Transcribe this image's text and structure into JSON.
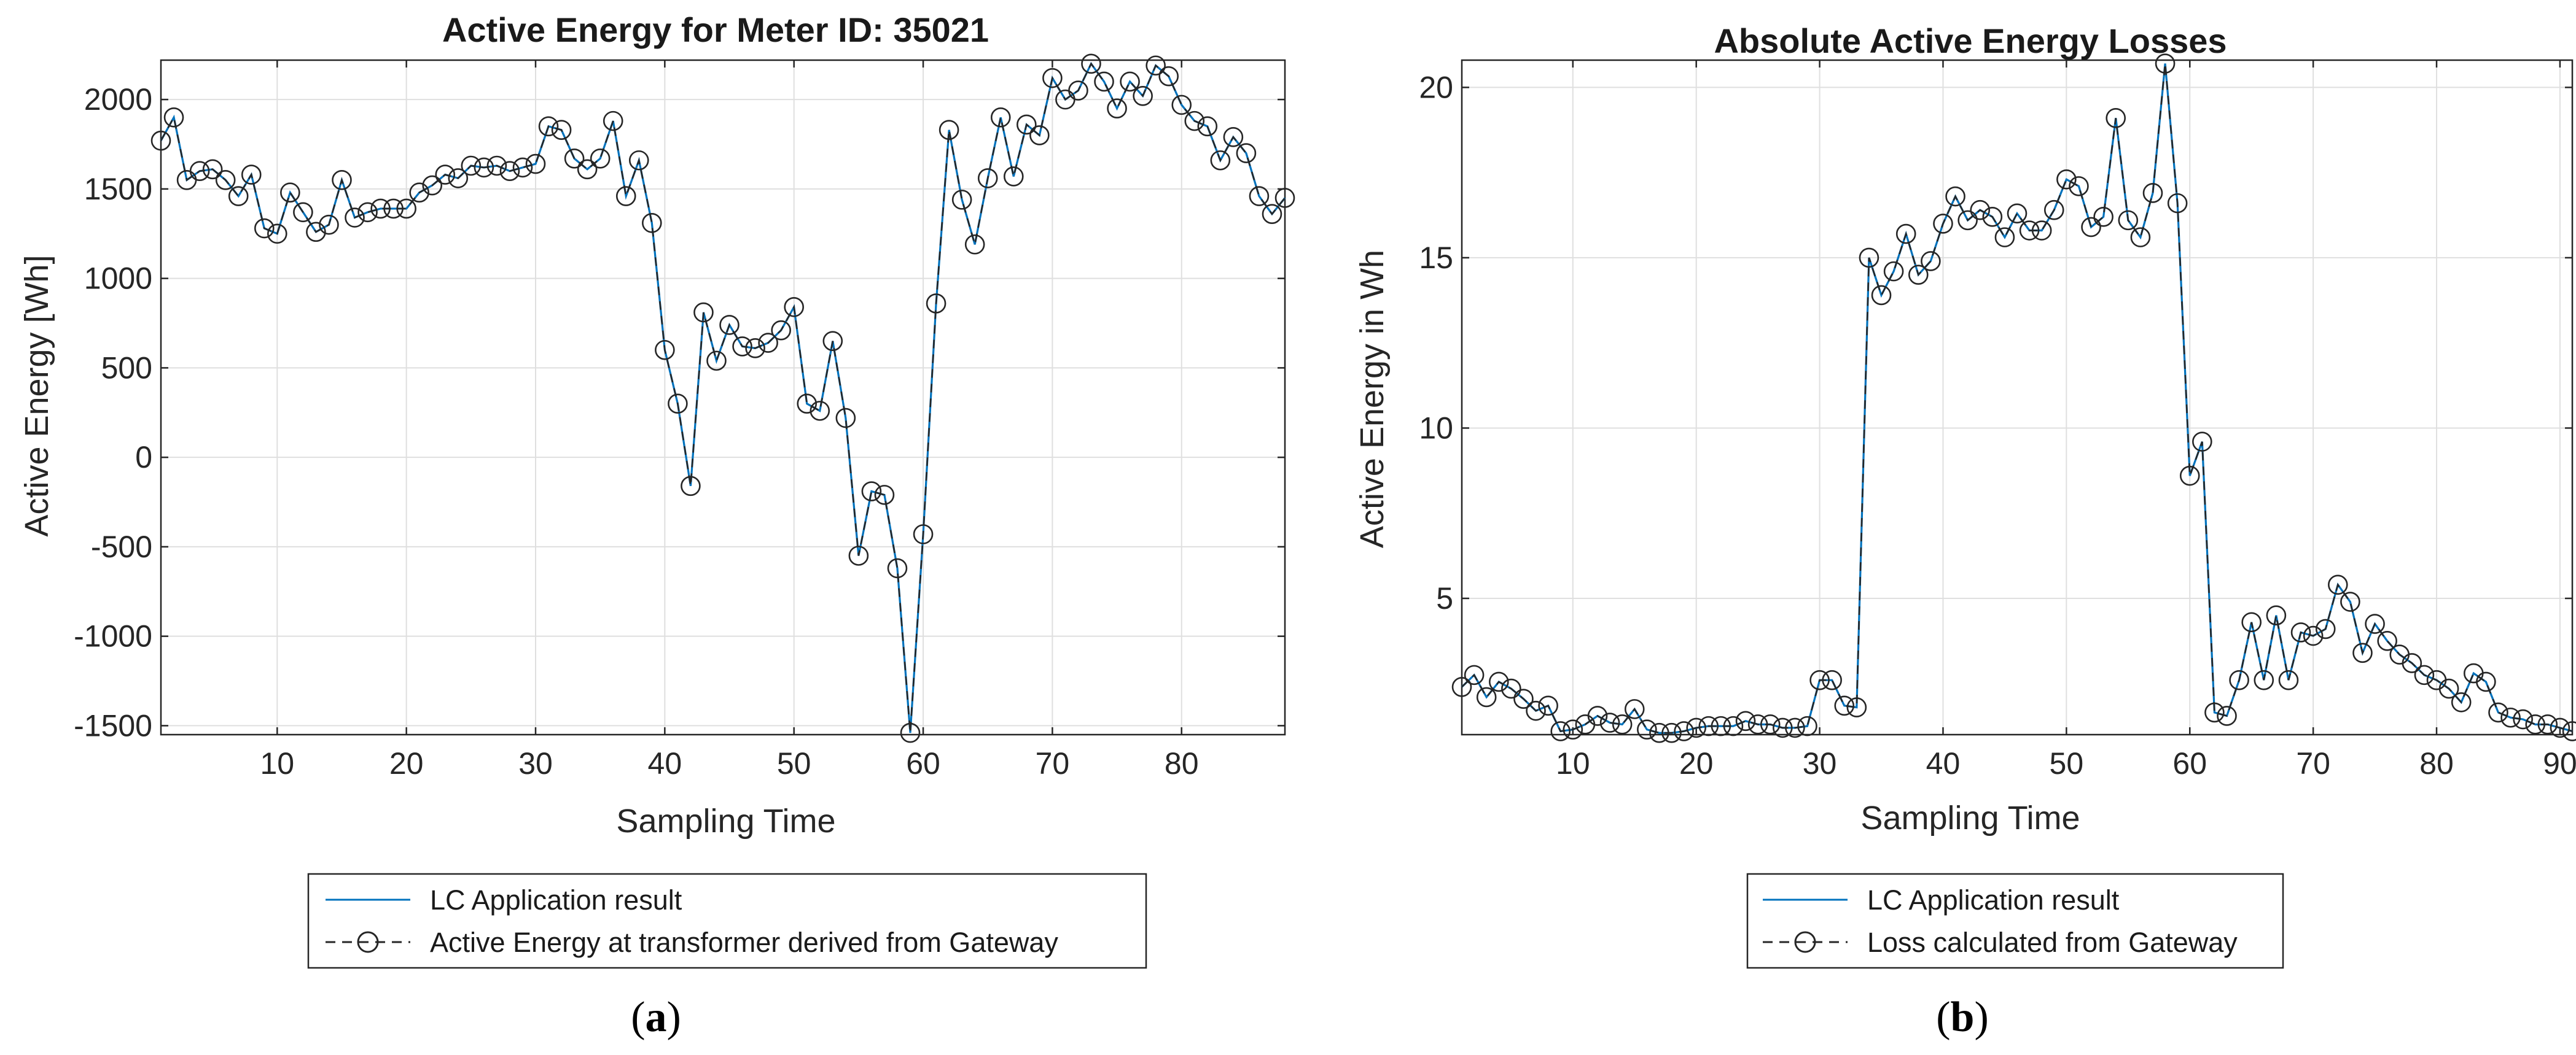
{
  "chart_data": [
    {
      "type": "line",
      "panel_label": "a",
      "title": "Active Energy for Meter ID: 35021",
      "xlabel": "Sampling Time",
      "ylabel": "Active Energy [Wh]",
      "xlim": [
        1,
        88
      ],
      "ylim": [
        -1550,
        2220
      ],
      "xticks": [
        10,
        20,
        30,
        40,
        50,
        60,
        70,
        80
      ],
      "yticks": [
        -1500,
        -1000,
        -500,
        0,
        500,
        1000,
        1500,
        2000
      ],
      "grid": true,
      "legend_position": "bottom-center",
      "x": [
        1,
        2,
        3,
        4,
        5,
        6,
        7,
        8,
        9,
        10,
        11,
        12,
        13,
        14,
        15,
        16,
        17,
        18,
        19,
        20,
        21,
        22,
        23,
        24,
        25,
        26,
        27,
        28,
        29,
        30,
        31,
        32,
        33,
        34,
        35,
        36,
        37,
        38,
        39,
        40,
        41,
        42,
        43,
        44,
        45,
        46,
        47,
        48,
        49,
        50,
        51,
        52,
        53,
        54,
        55,
        56,
        57,
        58,
        59,
        60,
        61,
        62,
        63,
        64,
        65,
        66,
        67,
        68,
        69,
        70,
        71,
        72,
        73,
        74,
        75,
        76,
        77,
        78,
        79,
        80,
        81,
        82,
        83,
        84,
        85,
        86,
        87,
        88
      ],
      "series": [
        {
          "name": "LC Application result",
          "style": "solid",
          "color": "#0072BD",
          "values": [
            1770,
            1900,
            1550,
            1600,
            1610,
            1550,
            1460,
            1580,
            1280,
            1250,
            1480,
            1370,
            1260,
            1300,
            1550,
            1340,
            1370,
            1390,
            1390,
            1390,
            1480,
            1520,
            1580,
            1560,
            1630,
            1620,
            1630,
            1600,
            1620,
            1640,
            1850,
            1830,
            1670,
            1610,
            1670,
            1880,
            1460,
            1660,
            1310,
            600,
            300,
            -160,
            810,
            540,
            740,
            620,
            610,
            640,
            710,
            840,
            300,
            260,
            650,
            220,
            -550,
            -190,
            -210,
            -620,
            -1540,
            -430,
            860,
            1830,
            1440,
            1190,
            1560,
            1900,
            1570,
            1860,
            1800,
            2120,
            2000,
            2050,
            2200,
            2100,
            1950,
            2100,
            2020,
            2190,
            2130,
            1970,
            1880,
            1850,
            1660,
            1790,
            1700,
            1460,
            1360,
            1450
          ]
        },
        {
          "name": "Active Energy at transformer derived from Gateway",
          "style": "dashed-circle",
          "color": "#262626",
          "values": [
            1770,
            1900,
            1550,
            1600,
            1610,
            1550,
            1460,
            1580,
            1280,
            1250,
            1480,
            1370,
            1260,
            1300,
            1550,
            1340,
            1370,
            1390,
            1390,
            1390,
            1480,
            1520,
            1580,
            1560,
            1630,
            1620,
            1630,
            1600,
            1620,
            1640,
            1850,
            1830,
            1670,
            1610,
            1670,
            1880,
            1460,
            1660,
            1310,
            600,
            300,
            -160,
            810,
            540,
            740,
            620,
            610,
            640,
            710,
            840,
            300,
            260,
            650,
            220,
            -550,
            -190,
            -210,
            -620,
            -1540,
            -430,
            860,
            1830,
            1440,
            1190,
            1560,
            1900,
            1570,
            1860,
            1800,
            2120,
            2000,
            2050,
            2200,
            2100,
            1950,
            2100,
            2020,
            2190,
            2130,
            1970,
            1880,
            1850,
            1660,
            1790,
            1700,
            1460,
            1360,
            1450
          ]
        }
      ]
    },
    {
      "type": "line",
      "panel_label": "b",
      "title": "Absolute Active Energy Losses",
      "xlabel": "Sampling Time",
      "ylabel": "Active Energy in Wh",
      "xlim": [
        1,
        91
      ],
      "ylim": [
        1.0,
        20.8
      ],
      "xticks": [
        10,
        20,
        30,
        40,
        50,
        60,
        70,
        80,
        90
      ],
      "yticks": [
        5,
        10,
        15,
        20
      ],
      "grid": true,
      "legend_position": "bottom-center",
      "x": [
        1,
        2,
        3,
        4,
        5,
        6,
        7,
        8,
        9,
        10,
        11,
        12,
        13,
        14,
        15,
        16,
        17,
        18,
        19,
        20,
        21,
        22,
        23,
        24,
        25,
        26,
        27,
        28,
        29,
        30,
        31,
        32,
        33,
        34,
        35,
        36,
        37,
        38,
        39,
        40,
        41,
        42,
        43,
        44,
        45,
        46,
        47,
        48,
        49,
        50,
        51,
        52,
        53,
        54,
        55,
        56,
        57,
        58,
        59,
        60,
        61,
        62,
        63,
        64,
        65,
        66,
        67,
        68,
        69,
        70,
        71,
        72,
        73,
        74,
        75,
        76,
        77,
        78,
        79,
        80,
        81,
        82,
        83,
        84,
        85,
        86,
        87,
        88,
        89,
        90,
        91
      ],
      "series": [
        {
          "name": "LC Application result",
          "style": "solid",
          "color": "#0072BD",
          "values": [
            2.4,
            2.75,
            2.1,
            2.55,
            2.35,
            2.05,
            1.7,
            1.85,
            1.1,
            1.15,
            1.3,
            1.55,
            1.35,
            1.3,
            1.75,
            1.15,
            1.05,
            1.05,
            1.1,
            1.2,
            1.25,
            1.25,
            1.25,
            1.4,
            1.3,
            1.3,
            1.2,
            1.2,
            1.25,
            2.6,
            2.6,
            1.85,
            1.8,
            15.0,
            13.9,
            14.6,
            15.7,
            14.5,
            14.9,
            16.0,
            16.8,
            16.1,
            16.4,
            16.2,
            15.6,
            16.3,
            15.8,
            15.8,
            16.4,
            17.3,
            17.1,
            15.9,
            16.2,
            19.1,
            16.1,
            15.6,
            16.9,
            20.7,
            16.6,
            8.6,
            9.6,
            1.65,
            1.55,
            2.6,
            4.3,
            2.6,
            4.5,
            2.6,
            4.0,
            3.9,
            4.1,
            5.4,
            4.9,
            3.4,
            4.25,
            3.75,
            3.35,
            3.1,
            2.75,
            2.6,
            2.35,
            1.95,
            2.8,
            2.55,
            1.65,
            1.5,
            1.45,
            1.3,
            1.3,
            1.2,
            1.1
          ]
        },
        {
          "name": "Loss calculated from Gateway",
          "style": "dashed-circle",
          "color": "#262626",
          "values": [
            2.4,
            2.75,
            2.1,
            2.55,
            2.35,
            2.05,
            1.7,
            1.85,
            1.1,
            1.15,
            1.3,
            1.55,
            1.35,
            1.3,
            1.75,
            1.15,
            1.05,
            1.05,
            1.1,
            1.2,
            1.25,
            1.25,
            1.25,
            1.4,
            1.3,
            1.3,
            1.2,
            1.2,
            1.25,
            2.6,
            2.6,
            1.85,
            1.8,
            15.0,
            13.9,
            14.6,
            15.7,
            14.5,
            14.9,
            16.0,
            16.8,
            16.1,
            16.4,
            16.2,
            15.6,
            16.3,
            15.8,
            15.8,
            16.4,
            17.3,
            17.1,
            15.9,
            16.2,
            19.1,
            16.1,
            15.6,
            16.9,
            20.7,
            16.6,
            8.6,
            9.6,
            1.65,
            1.55,
            2.6,
            4.3,
            2.6,
            4.5,
            2.6,
            4.0,
            3.9,
            4.1,
            5.4,
            4.9,
            3.4,
            4.25,
            3.75,
            3.35,
            3.1,
            2.75,
            2.6,
            2.35,
            1.95,
            2.8,
            2.55,
            1.65,
            1.5,
            1.45,
            1.3,
            1.3,
            1.2,
            1.1
          ]
        }
      ]
    }
  ],
  "captions": {
    "a": {
      "open": "(",
      "letter": "a",
      "close": ")"
    },
    "b": {
      "open": "(",
      "letter": "b",
      "close": ")"
    }
  }
}
